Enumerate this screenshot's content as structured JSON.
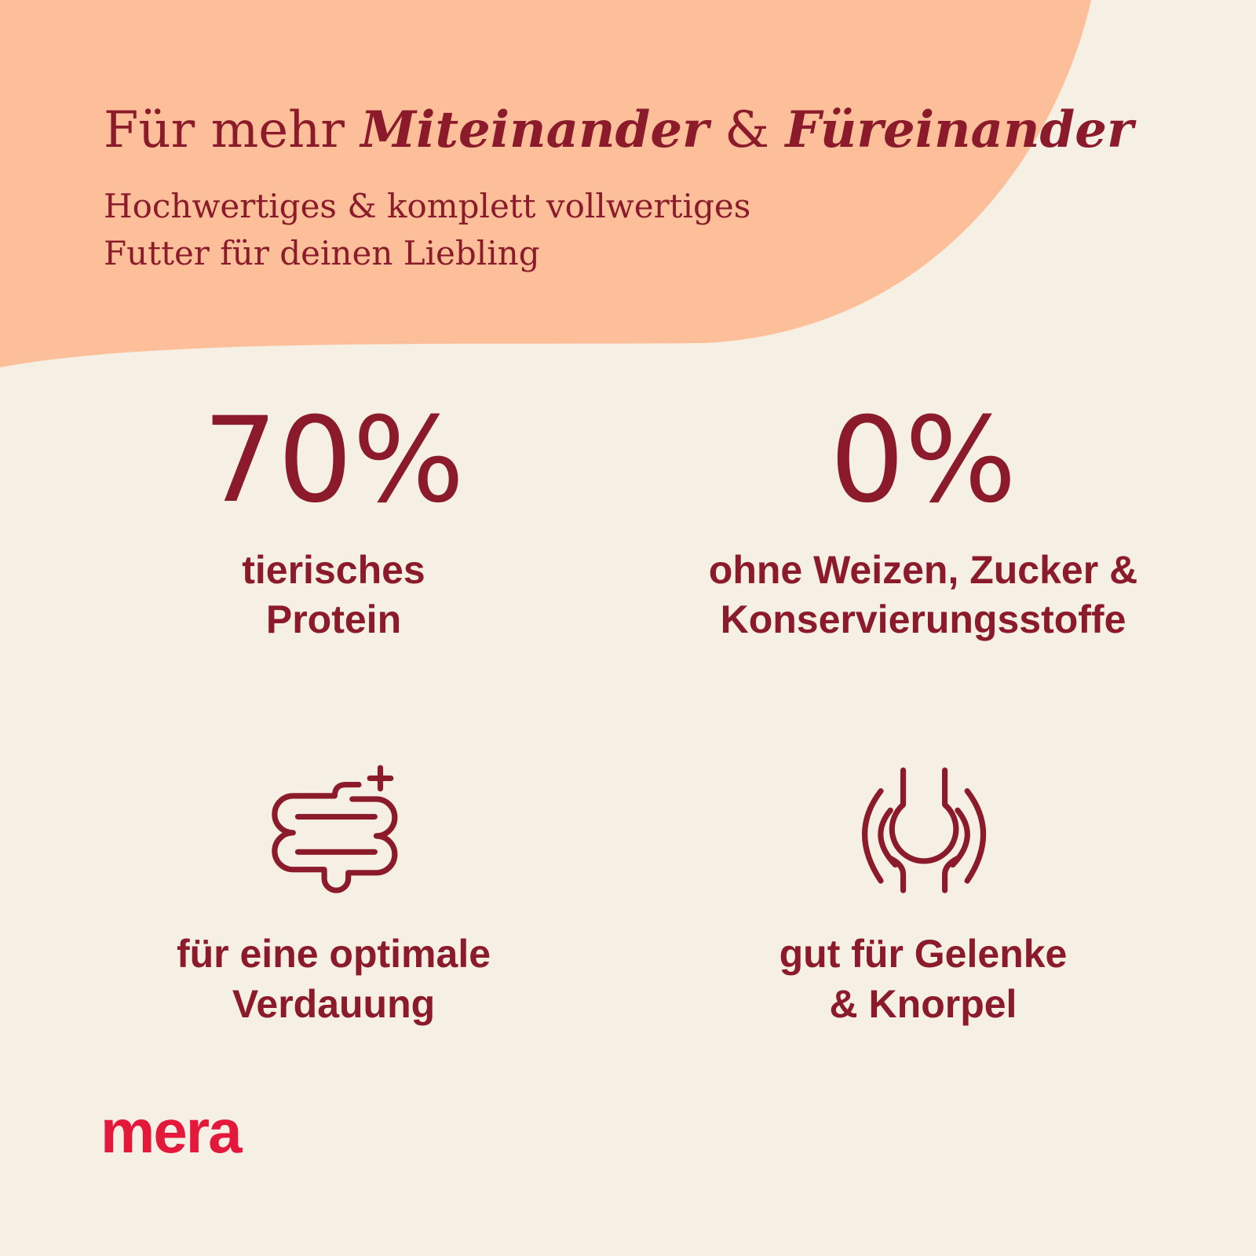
{
  "header": {
    "title": [
      "Für mehr ",
      "Miteinander",
      " & ",
      "Füreinander"
    ],
    "subtitle": [
      "Hochwertiges & komplett vollwertiges",
      "Futter für deinen Liebling"
    ]
  },
  "features": [
    {
      "stat": "70%",
      "label": [
        "tierisches",
        "Protein"
      ]
    },
    {
      "stat": "0%",
      "label": [
        "ohne Weizen, Zucker &",
        "Konservierungsstoffe"
      ]
    },
    {
      "label": [
        "für eine optimale",
        "Verdauung"
      ]
    },
    {
      "label": [
        "gut für Gelenke",
        "& Knorpel"
      ]
    }
  ],
  "logo": "mera"
}
